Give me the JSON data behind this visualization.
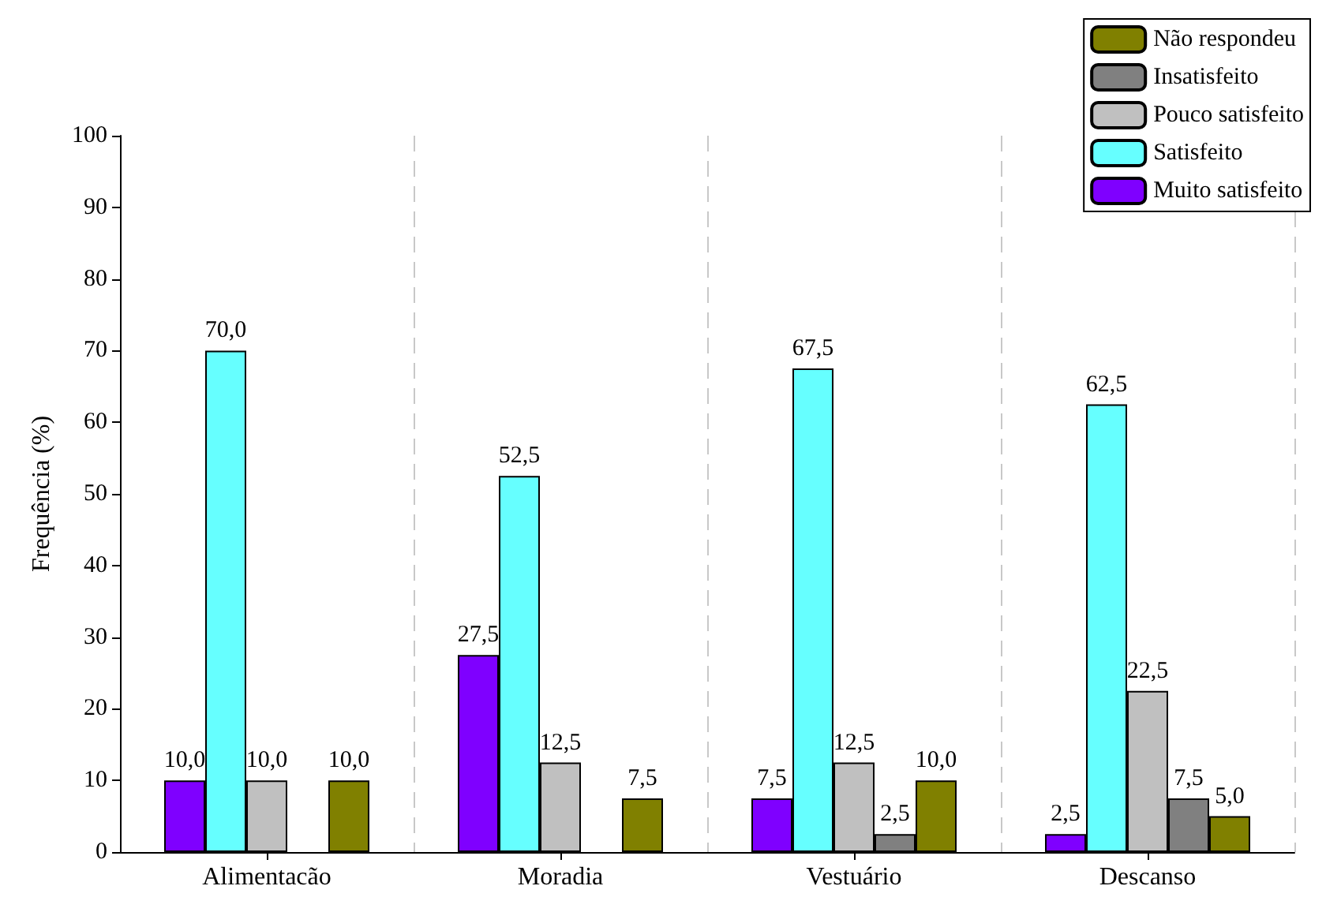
{
  "chart_data": {
    "type": "bar",
    "ylabel": "Frequência (%)",
    "categories": [
      "Alimentacão",
      "Moradia",
      "Vestuário",
      "Descanso"
    ],
    "series": [
      {
        "name": "Muito satisfeito",
        "color": "#7f00ff",
        "values": [
          10,
          27.5,
          7.5,
          2.5
        ],
        "value_labels": [
          "10,0",
          "27,5",
          "7,5",
          "2,5"
        ]
      },
      {
        "name": "Satisfeito",
        "color": "#66ffff",
        "values": [
          70,
          52.5,
          67.5,
          62.5
        ],
        "value_labels": [
          "70,0",
          "52,5",
          "67,5",
          "62,5"
        ]
      },
      {
        "name": "Pouco satisfeito",
        "color": "#c0c0c0",
        "values": [
          10,
          12.5,
          12.5,
          22.5
        ],
        "value_labels": [
          "10,0",
          "12,5",
          "12,5",
          "22,5"
        ]
      },
      {
        "name": "Insatisfeito",
        "color": "#808080",
        "values": [
          null,
          null,
          2.5,
          7.5
        ],
        "value_labels": [
          null,
          null,
          "2,5",
          "7,5"
        ]
      },
      {
        "name": "Não respondeu",
        "color": "#808000",
        "values": [
          10,
          7.5,
          10,
          5
        ],
        "value_labels": [
          "10,0",
          "7,5",
          "10,0",
          "5,0"
        ]
      }
    ],
    "ylim": [
      0,
      100
    ],
    "yticks": [
      0,
      10,
      20,
      30,
      40,
      50,
      60,
      70,
      80,
      90,
      100
    ],
    "grid": "x",
    "legend": "top right"
  }
}
